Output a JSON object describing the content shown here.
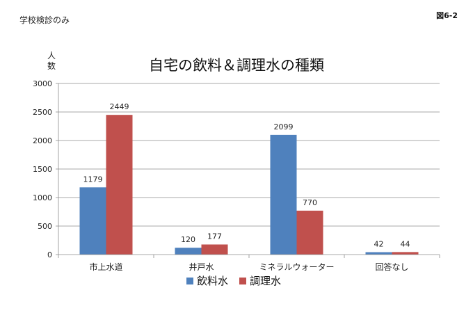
{
  "header": {
    "note": "学校検診のみ",
    "figure_label": "図6-2"
  },
  "chart_data": {
    "type": "bar",
    "title": "自宅の飲料＆調理水の種類",
    "ylabel": "人数",
    "xlabel": "",
    "ylim": [
      0,
      3000
    ],
    "yticks": [
      0,
      500,
      1000,
      1500,
      2000,
      2500,
      3000
    ],
    "grid": true,
    "legend_position": "bottom",
    "categories": [
      "市上水道",
      "井戸水",
      "ミネラルウォーター",
      "回答なし"
    ],
    "series": [
      {
        "name": "飲料水",
        "color": "#4f81bd",
        "values": [
          1179,
          120,
          2099,
          42
        ]
      },
      {
        "name": "調理水",
        "color": "#c0504d",
        "values": [
          2449,
          177,
          770,
          44
        ]
      }
    ]
  }
}
